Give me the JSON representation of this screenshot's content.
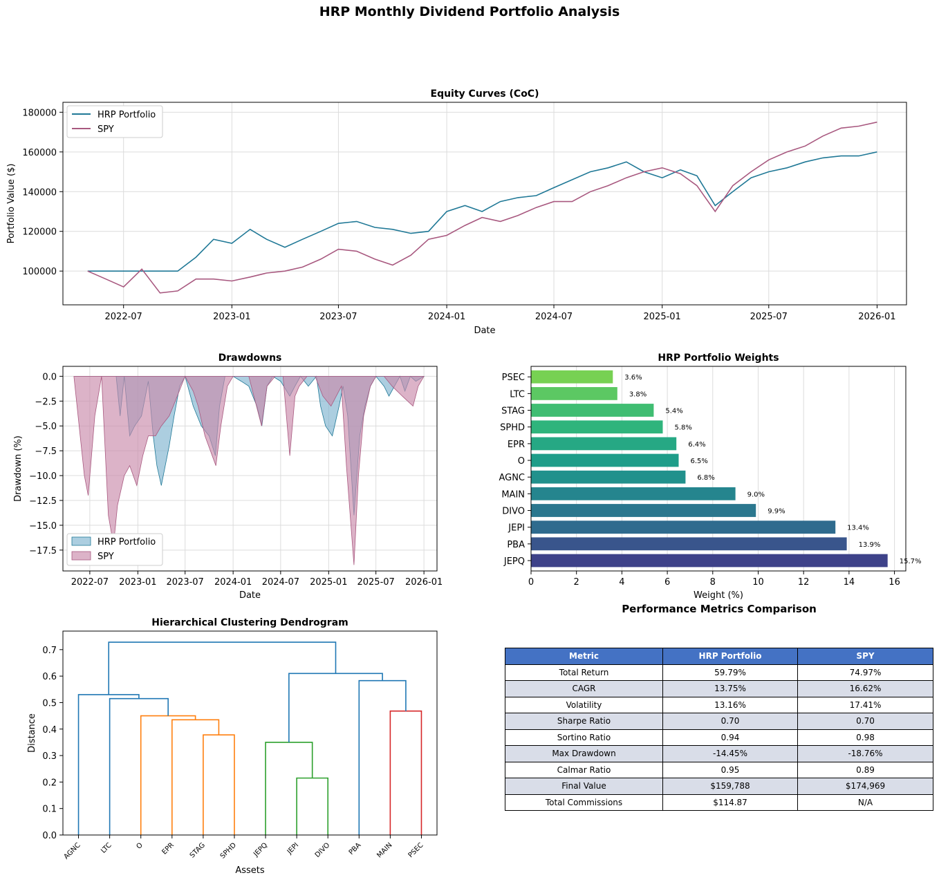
{
  "suptitle": "HRP Monthly Dividend Portfolio Analysis",
  "colors": {
    "hrp": "#1f7896",
    "spy": "#a8587f",
    "hrp_fill": "#7fb4cf",
    "spy_fill": "#c98aaa",
    "tableHeader": "#4472c4",
    "tableAlt": "#d9dde8"
  },
  "chart_data": [
    {
      "id": "equity",
      "type": "line",
      "title": "Equity Curves (CoC)",
      "xlabel": "Date",
      "ylabel": "Portfolio Value ($)",
      "xlim": [
        "2022-03-20",
        "2026-02-20"
      ],
      "ylim": [
        83000,
        185000
      ],
      "xticks": [
        "2022-07",
        "2023-01",
        "2023-07",
        "2024-01",
        "2024-07",
        "2025-01",
        "2025-07",
        "2026-01"
      ],
      "yticks": [
        100000,
        120000,
        140000,
        160000,
        180000
      ],
      "legend": "top-left",
      "grid": true,
      "series": [
        {
          "name": "HRP Portfolio",
          "x": [
            "2022-05-01",
            "2022-07-01",
            "2022-09-01",
            "2022-10-01",
            "2022-11-01",
            "2022-12-01",
            "2023-01-01",
            "2023-02-01",
            "2023-03-01",
            "2023-04-01",
            "2023-05-01",
            "2023-06-01",
            "2023-07-01",
            "2023-08-01",
            "2023-09-01",
            "2023-10-01",
            "2023-11-01",
            "2023-12-01",
            "2024-01-01",
            "2024-02-01",
            "2024-03-01",
            "2024-04-01",
            "2024-05-01",
            "2024-06-01",
            "2024-07-01",
            "2024-08-01",
            "2024-09-01",
            "2024-10-01",
            "2024-11-01",
            "2024-12-01",
            "2025-01-01",
            "2025-02-01",
            "2025-03-01",
            "2025-04-01",
            "2025-05-01",
            "2025-06-01",
            "2025-07-01",
            "2025-08-01",
            "2025-09-01",
            "2025-10-01",
            "2025-11-01",
            "2025-12-01",
            "2026-01-01"
          ],
          "values": [
            100000,
            100000,
            100000,
            100000,
            107000,
            116000,
            114000,
            121000,
            116000,
            112000,
            116000,
            120000,
            124000,
            125000,
            122000,
            121000,
            119000,
            120000,
            130000,
            133000,
            130000,
            135000,
            137000,
            138000,
            142000,
            146000,
            150000,
            152000,
            155000,
            150000,
            147000,
            151000,
            148000,
            133000,
            140000,
            147000,
            150000,
            152000,
            155000,
            157000,
            158000,
            158000,
            160000
          ]
        },
        {
          "name": "SPY",
          "x": [
            "2022-05-01",
            "2022-06-01",
            "2022-07-01",
            "2022-08-01",
            "2022-09-01",
            "2022-10-01",
            "2022-11-01",
            "2022-12-01",
            "2023-01-01",
            "2023-02-01",
            "2023-03-01",
            "2023-04-01",
            "2023-05-01",
            "2023-06-01",
            "2023-07-01",
            "2023-08-01",
            "2023-09-01",
            "2023-10-01",
            "2023-11-01",
            "2023-12-01",
            "2024-01-01",
            "2024-02-01",
            "2024-03-01",
            "2024-04-01",
            "2024-05-01",
            "2024-06-01",
            "2024-07-01",
            "2024-08-01",
            "2024-09-01",
            "2024-10-01",
            "2024-11-01",
            "2024-12-01",
            "2025-01-01",
            "2025-02-01",
            "2025-03-01",
            "2025-04-01",
            "2025-05-01",
            "2025-06-01",
            "2025-07-01",
            "2025-08-01",
            "2025-09-01",
            "2025-10-01",
            "2025-11-01",
            "2025-12-01",
            "2026-01-01"
          ],
          "values": [
            100000,
            96000,
            92000,
            101000,
            89000,
            90000,
            96000,
            96000,
            95000,
            97000,
            99000,
            100000,
            102000,
            106000,
            111000,
            110000,
            106000,
            103000,
            108000,
            116000,
            118000,
            123000,
            127000,
            125000,
            128000,
            132000,
            135000,
            135000,
            140000,
            143000,
            147000,
            150000,
            152000,
            149000,
            143000,
            130000,
            143000,
            150000,
            156000,
            160000,
            163000,
            168000,
            172000,
            173000,
            175000
          ]
        }
      ]
    },
    {
      "id": "drawdowns",
      "type": "area",
      "title": "Drawdowns",
      "xlabel": "Date",
      "ylabel": "Drawdown (%)",
      "xlim": [
        "2022-03-20",
        "2026-02-20"
      ],
      "ylim": [
        -19.6,
        1.0
      ],
      "xticks": [
        "2022-07",
        "2023-01",
        "2023-07",
        "2024-01",
        "2024-07",
        "2025-01",
        "2025-07",
        "2026-01"
      ],
      "yticks": [
        0.0,
        -2.5,
        -5.0,
        -7.5,
        -10.0,
        -12.5,
        -15.0,
        -17.5
      ],
      "legend": "bottom-left",
      "grid": true,
      "series": [
        {
          "name": "HRP Portfolio",
          "x": [
            "2022-05-01",
            "2022-10-10",
            "2022-10-25",
            "2022-11-10",
            "2022-12-01",
            "2022-12-20",
            "2023-01-15",
            "2023-02-10",
            "2023-03-01",
            "2023-03-15",
            "2023-04-01",
            "2023-05-01",
            "2023-05-20",
            "2023-06-10",
            "2023-07-01",
            "2023-08-01",
            "2023-09-01",
            "2023-10-01",
            "2023-10-25",
            "2023-11-10",
            "2023-12-01",
            "2024-01-01",
            "2024-02-01",
            "2024-03-01",
            "2024-04-01",
            "2024-04-20",
            "2024-05-10",
            "2024-06-01",
            "2024-07-01",
            "2024-08-05",
            "2024-08-25",
            "2024-09-15",
            "2024-10-15",
            "2024-11-15",
            "2024-12-01",
            "2024-12-20",
            "2025-01-15",
            "2025-02-10",
            "2025-02-25",
            "2025-03-15",
            "2025-04-08",
            "2025-04-30",
            "2025-05-20",
            "2025-06-10",
            "2025-07-01",
            "2025-08-01",
            "2025-08-20",
            "2025-09-10",
            "2025-10-01",
            "2025-10-20",
            "2025-11-10",
            "2025-12-01",
            "2026-01-01"
          ],
          "values": [
            0.0,
            0.0,
            -4.0,
            0.0,
            -6.0,
            -5.0,
            -4.0,
            -0.5,
            -6.0,
            -9.0,
            -11.0,
            -7.0,
            -4.0,
            -1.0,
            0.0,
            -3.0,
            -5.0,
            -6.0,
            -8.0,
            -3.0,
            0.0,
            0.0,
            -0.5,
            -1.0,
            -3.0,
            -5.0,
            -1.0,
            0.0,
            -0.5,
            -2.0,
            -1.0,
            0.0,
            -1.0,
            0.0,
            -3.0,
            -5.0,
            -6.0,
            -3.0,
            -1.0,
            -4.0,
            -14.0,
            -6.0,
            -3.0,
            -1.0,
            0.0,
            -1.0,
            -2.0,
            -1.0,
            0.0,
            -1.5,
            0.0,
            -0.5,
            0.0
          ]
        },
        {
          "name": "SPY",
          "x": [
            "2022-05-01",
            "2022-06-10",
            "2022-06-25",
            "2022-07-20",
            "2022-08-15",
            "2022-09-10",
            "2022-09-30",
            "2022-10-15",
            "2022-11-10",
            "2022-12-01",
            "2022-12-28",
            "2023-01-20",
            "2023-02-10",
            "2023-03-10",
            "2023-04-01",
            "2023-05-01",
            "2023-06-01",
            "2023-07-01",
            "2023-08-01",
            "2023-08-20",
            "2023-09-15",
            "2023-10-27",
            "2023-11-15",
            "2023-12-10",
            "2024-01-01",
            "2024-02-01",
            "2024-03-01",
            "2024-04-19",
            "2024-05-10",
            "2024-06-10",
            "2024-07-10",
            "2024-08-05",
            "2024-08-25",
            "2024-09-10",
            "2024-10-10",
            "2024-11-10",
            "2024-12-10",
            "2025-01-10",
            "2025-02-19",
            "2025-03-10",
            "2025-04-08",
            "2025-04-25",
            "2025-05-15",
            "2025-06-10",
            "2025-07-01",
            "2025-08-01",
            "2025-09-01",
            "2025-10-10",
            "2025-11-20",
            "2025-12-10",
            "2026-01-01"
          ],
          "values": [
            0.0,
            -10.0,
            -12.0,
            -4.0,
            0.0,
            -14.0,
            -17.0,
            -13.0,
            -10.0,
            -9.0,
            -11.0,
            -8.0,
            -6.0,
            -6.0,
            -5.0,
            -4.0,
            -2.0,
            0.0,
            -1.5,
            -3.0,
            -6.0,
            -9.0,
            -5.0,
            -1.0,
            0.0,
            0.0,
            0.0,
            -5.0,
            -1.0,
            0.0,
            0.0,
            -8.0,
            -2.0,
            -1.0,
            0.0,
            0.0,
            -2.0,
            -3.0,
            -1.0,
            -9.0,
            -19.0,
            -10.0,
            -4.0,
            -1.0,
            0.0,
            0.0,
            -1.0,
            -2.0,
            -3.0,
            -1.0,
            0.0
          ]
        }
      ]
    },
    {
      "id": "weights",
      "type": "bar",
      "orientation": "horizontal",
      "title": "HRP Portfolio Weights",
      "xlabel": "Weight (%)",
      "xlim": [
        0,
        16.5
      ],
      "xticks": [
        0,
        2,
        4,
        6,
        8,
        10,
        12,
        14,
        16
      ],
      "categories": [
        "JEPQ",
        "PBA",
        "JEPI",
        "DIVO",
        "MAIN",
        "AGNC",
        "O",
        "EPR",
        "SPHD",
        "STAG",
        "LTC",
        "PSEC"
      ],
      "values": [
        15.7,
        13.9,
        13.4,
        9.9,
        9.0,
        6.8,
        6.5,
        6.4,
        5.8,
        5.4,
        3.8,
        3.6
      ],
      "labels": [
        "15.7%",
        "13.9%",
        "13.4%",
        "9.9%",
        "9.0%",
        "6.8%",
        "6.5%",
        "6.4%",
        "5.8%",
        "5.4%",
        "3.8%",
        "3.6%"
      ],
      "bar_colors": [
        "#3e4289",
        "#39558c",
        "#2f6b8e",
        "#2b778e",
        "#25858e",
        "#21918c",
        "#1e9d89",
        "#26a884",
        "#2fb47c",
        "#40bd72",
        "#5cc863",
        "#77d153"
      ],
      "grid": true
    },
    {
      "id": "dendrogram",
      "type": "dendrogram",
      "title": "Hierarchical Clustering Dendrogram",
      "xlabel": "Assets",
      "ylabel": "Distance",
      "ylim": [
        0,
        0.77
      ],
      "yticks": [
        0.0,
        0.1,
        0.2,
        0.3,
        0.4,
        0.5,
        0.6,
        0.7
      ],
      "leaves": [
        "AGNC",
        "LTC",
        "O",
        "EPR",
        "STAG",
        "SPHD",
        "JEPQ",
        "JEPI",
        "DIVO",
        "PBA",
        "MAIN",
        "PSEC"
      ],
      "links": [
        {
          "a": [
            7
          ],
          "b": [
            8
          ],
          "height": 0.215,
          "color": "#2ca02c"
        },
        {
          "a": [
            6
          ],
          "b": [
            7,
            8
          ],
          "height": 0.35,
          "color": "#2ca02c"
        },
        {
          "a": [
            4
          ],
          "b": [
            5
          ],
          "height": 0.378,
          "color": "#ff7f0e"
        },
        {
          "a": [
            3
          ],
          "b": [
            4,
            5
          ],
          "height": 0.435,
          "color": "#ff7f0e"
        },
        {
          "a": [
            2
          ],
          "b": [
            3,
            4,
            5
          ],
          "height": 0.45,
          "color": "#ff7f0e"
        },
        {
          "a": [
            10
          ],
          "b": [
            11
          ],
          "height": 0.468,
          "color": "#d62728"
        },
        {
          "a": [
            1
          ],
          "b": [
            2,
            3,
            4,
            5
          ],
          "height": 0.515,
          "color": "#1f77b4"
        },
        {
          "a": [
            0
          ],
          "b": [
            1,
            2,
            3,
            4,
            5
          ],
          "height": 0.53,
          "color": "#1f77b4"
        },
        {
          "a": [
            9
          ],
          "b": [
            10,
            11
          ],
          "height": 0.583,
          "color": "#1f77b4"
        },
        {
          "a": [
            6,
            7,
            8
          ],
          "b": [
            9,
            10,
            11
          ],
          "height": 0.61,
          "color": "#1f77b4"
        },
        {
          "a": [
            0,
            1,
            2,
            3,
            4,
            5
          ],
          "b": [
            6,
            7,
            8,
            9,
            10,
            11
          ],
          "height": 0.728,
          "color": "#1f77b4"
        }
      ]
    },
    {
      "id": "metrics",
      "type": "table",
      "title": "Performance Metrics Comparison",
      "columns": [
        "Metric",
        "HRP Portfolio",
        "SPY"
      ],
      "rows": [
        [
          "Total Return",
          "59.79%",
          "74.97%"
        ],
        [
          "CAGR",
          "13.75%",
          "16.62%"
        ],
        [
          "Volatility",
          "13.16%",
          "17.41%"
        ],
        [
          "Sharpe Ratio",
          "0.70",
          "0.70"
        ],
        [
          "Sortino Ratio",
          "0.94",
          "0.98"
        ],
        [
          "Max Drawdown",
          "-14.45%",
          "-18.76%"
        ],
        [
          "Calmar Ratio",
          "0.95",
          "0.89"
        ],
        [
          "Final Value",
          "$159,788",
          "$174,969"
        ],
        [
          "Total Commissions",
          "$114.87",
          "N/A"
        ]
      ]
    }
  ]
}
